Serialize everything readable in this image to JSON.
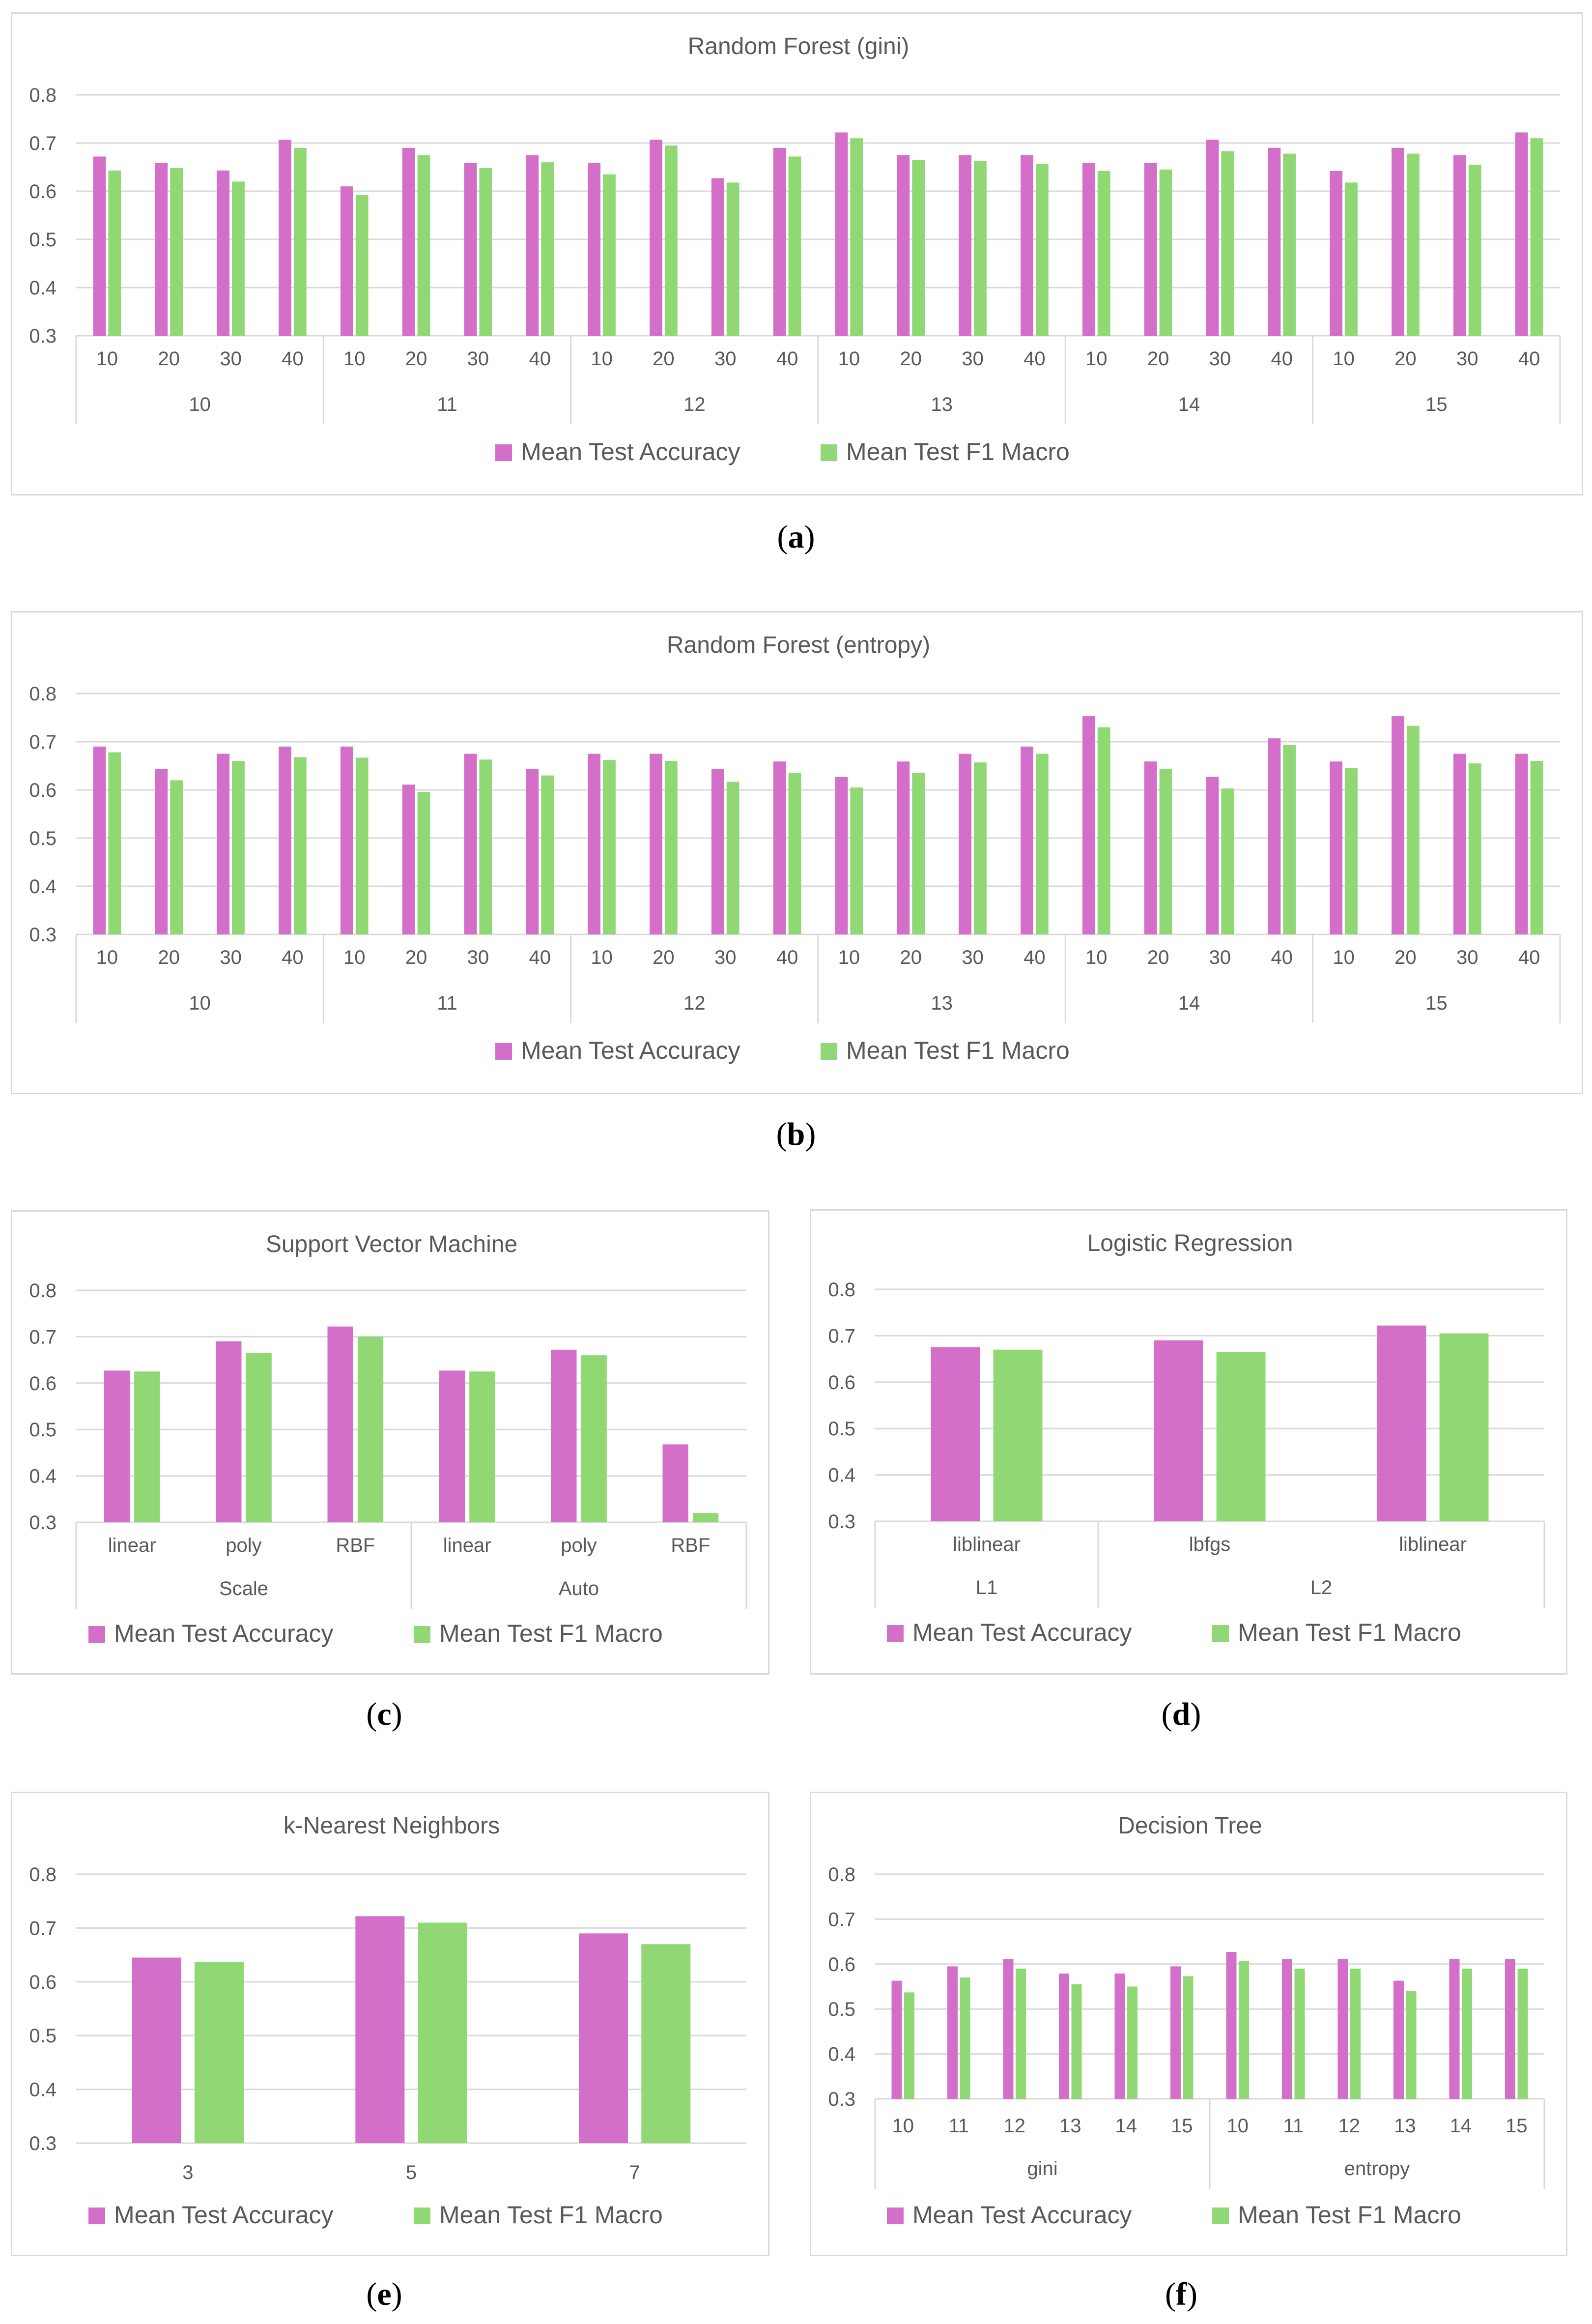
{
  "legend": {
    "accuracy": "Mean Test Accuracy",
    "f1": "Mean Test F1 Macro"
  },
  "colors": {
    "accuracy": "#d36ec9",
    "f1": "#8fd874",
    "grid": "#d9d9d9",
    "text": "#595959",
    "border": "#d9d9d9"
  },
  "chart_data": [
    {
      "id": "a",
      "label": "a",
      "type": "bar",
      "title": "Random Forest (gini)",
      "ylim": [
        0.3,
        0.8
      ],
      "yticks": [
        "0.3",
        "0.4",
        "0.5",
        "0.6",
        "0.7",
        "0.8"
      ],
      "groups": [
        "10",
        "11",
        "12",
        "13",
        "14",
        "15"
      ],
      "categories": [
        "10",
        "20",
        "30",
        "40",
        "10",
        "20",
        "30",
        "40",
        "10",
        "20",
        "30",
        "40",
        "10",
        "20",
        "30",
        "40",
        "10",
        "20",
        "30",
        "40",
        "10",
        "20",
        "30",
        "40"
      ],
      "series": [
        {
          "name": "Mean Test Accuracy",
          "values": [
            0.672,
            0.659,
            0.643,
            0.707,
            0.61,
            0.69,
            0.659,
            0.675,
            0.659,
            0.707,
            0.627,
            0.69,
            0.722,
            0.675,
            0.675,
            0.675,
            0.659,
            0.659,
            0.707,
            0.69,
            0.642,
            0.69,
            0.675,
            0.722
          ]
        },
        {
          "name": "Mean Test F1 Macro",
          "values": [
            0.643,
            0.648,
            0.62,
            0.69,
            0.592,
            0.675,
            0.648,
            0.66,
            0.635,
            0.695,
            0.618,
            0.672,
            0.71,
            0.665,
            0.663,
            0.657,
            0.642,
            0.645,
            0.683,
            0.678,
            0.618,
            0.678,
            0.655,
            0.71
          ]
        }
      ]
    },
    {
      "id": "b",
      "label": "b",
      "type": "bar",
      "title": "Random Forest (entropy)",
      "ylim": [
        0.3,
        0.8
      ],
      "yticks": [
        "0.3",
        "0.4",
        "0.5",
        "0.6",
        "0.7",
        "0.8"
      ],
      "groups": [
        "10",
        "11",
        "12",
        "13",
        "14",
        "15"
      ],
      "categories": [
        "10",
        "20",
        "30",
        "40",
        "10",
        "20",
        "30",
        "40",
        "10",
        "20",
        "30",
        "40",
        "10",
        "20",
        "30",
        "40",
        "10",
        "20",
        "30",
        "40",
        "10",
        "20",
        "30",
        "40"
      ],
      "series": [
        {
          "name": "Mean Test Accuracy",
          "values": [
            0.69,
            0.643,
            0.675,
            0.69,
            0.69,
            0.611,
            0.675,
            0.643,
            0.675,
            0.675,
            0.643,
            0.659,
            0.627,
            0.659,
            0.675,
            0.69,
            0.753,
            0.659,
            0.627,
            0.707,
            0.659,
            0.753,
            0.675,
            0.675
          ]
        },
        {
          "name": "Mean Test F1 Macro",
          "values": [
            0.678,
            0.62,
            0.66,
            0.668,
            0.667,
            0.596,
            0.663,
            0.63,
            0.662,
            0.66,
            0.617,
            0.635,
            0.605,
            0.635,
            0.657,
            0.675,
            0.73,
            0.643,
            0.603,
            0.693,
            0.645,
            0.733,
            0.655,
            0.66
          ]
        }
      ]
    },
    {
      "id": "c",
      "label": "c",
      "type": "bar",
      "title": "Support Vector Machine",
      "ylim": [
        0.3,
        0.8
      ],
      "yticks": [
        "0.3",
        "0.4",
        "0.5",
        "0.6",
        "0.7",
        "0.8"
      ],
      "groups": [
        "Scale",
        "Auto"
      ],
      "categories": [
        "linear",
        "poly",
        "RBF",
        "linear",
        "poly",
        "RBF"
      ],
      "series": [
        {
          "name": "Mean Test Accuracy",
          "values": [
            0.627,
            0.69,
            0.722,
            0.627,
            0.672,
            0.468
          ]
        },
        {
          "name": "Mean Test F1 Macro",
          "values": [
            0.625,
            0.665,
            0.7,
            0.625,
            0.66,
            0.32
          ]
        }
      ]
    },
    {
      "id": "d",
      "label": "d",
      "type": "bar",
      "title": "Logistic Regression",
      "ylim": [
        0.3,
        0.8
      ],
      "yticks": [
        "0.3",
        "0.4",
        "0.5",
        "0.6",
        "0.7",
        "0.8"
      ],
      "groups": [
        "L1",
        "L2"
      ],
      "group_sizes": [
        1,
        2
      ],
      "categories": [
        "liblinear",
        "lbfgs",
        "liblinear"
      ],
      "series": [
        {
          "name": "Mean Test Accuracy",
          "values": [
            0.675,
            0.69,
            0.722
          ]
        },
        {
          "name": "Mean Test F1 Macro",
          "values": [
            0.67,
            0.665,
            0.705
          ]
        }
      ]
    },
    {
      "id": "e",
      "label": "e",
      "type": "bar",
      "title": "k-Nearest Neighbors",
      "ylim": [
        0.3,
        0.8
      ],
      "yticks": [
        "0.3",
        "0.4",
        "0.5",
        "0.6",
        "0.7",
        "0.8"
      ],
      "groups": [],
      "categories": [
        "3",
        "5",
        "7"
      ],
      "series": [
        {
          "name": "Mean Test Accuracy",
          "values": [
            0.645,
            0.722,
            0.69
          ]
        },
        {
          "name": "Mean Test F1 Macro",
          "values": [
            0.637,
            0.71,
            0.67
          ]
        }
      ]
    },
    {
      "id": "f",
      "label": "f",
      "type": "bar",
      "title": "Decision Tree",
      "ylim": [
        0.3,
        0.8
      ],
      "yticks": [
        "0.3",
        "0.4",
        "0.5",
        "0.6",
        "0.7",
        "0.8"
      ],
      "groups": [
        "gini",
        "entropy"
      ],
      "categories": [
        "10",
        "11",
        "12",
        "13",
        "14",
        "15",
        "10",
        "11",
        "12",
        "13",
        "14",
        "15"
      ],
      "series": [
        {
          "name": "Mean Test Accuracy",
          "values": [
            0.563,
            0.595,
            0.611,
            0.579,
            0.579,
            0.595,
            0.627,
            0.611,
            0.611,
            0.563,
            0.611,
            0.611
          ]
        },
        {
          "name": "Mean Test F1 Macro",
          "values": [
            0.537,
            0.57,
            0.59,
            0.555,
            0.55,
            0.573,
            0.607,
            0.59,
            0.59,
            0.54,
            0.59,
            0.59
          ]
        }
      ]
    }
  ]
}
